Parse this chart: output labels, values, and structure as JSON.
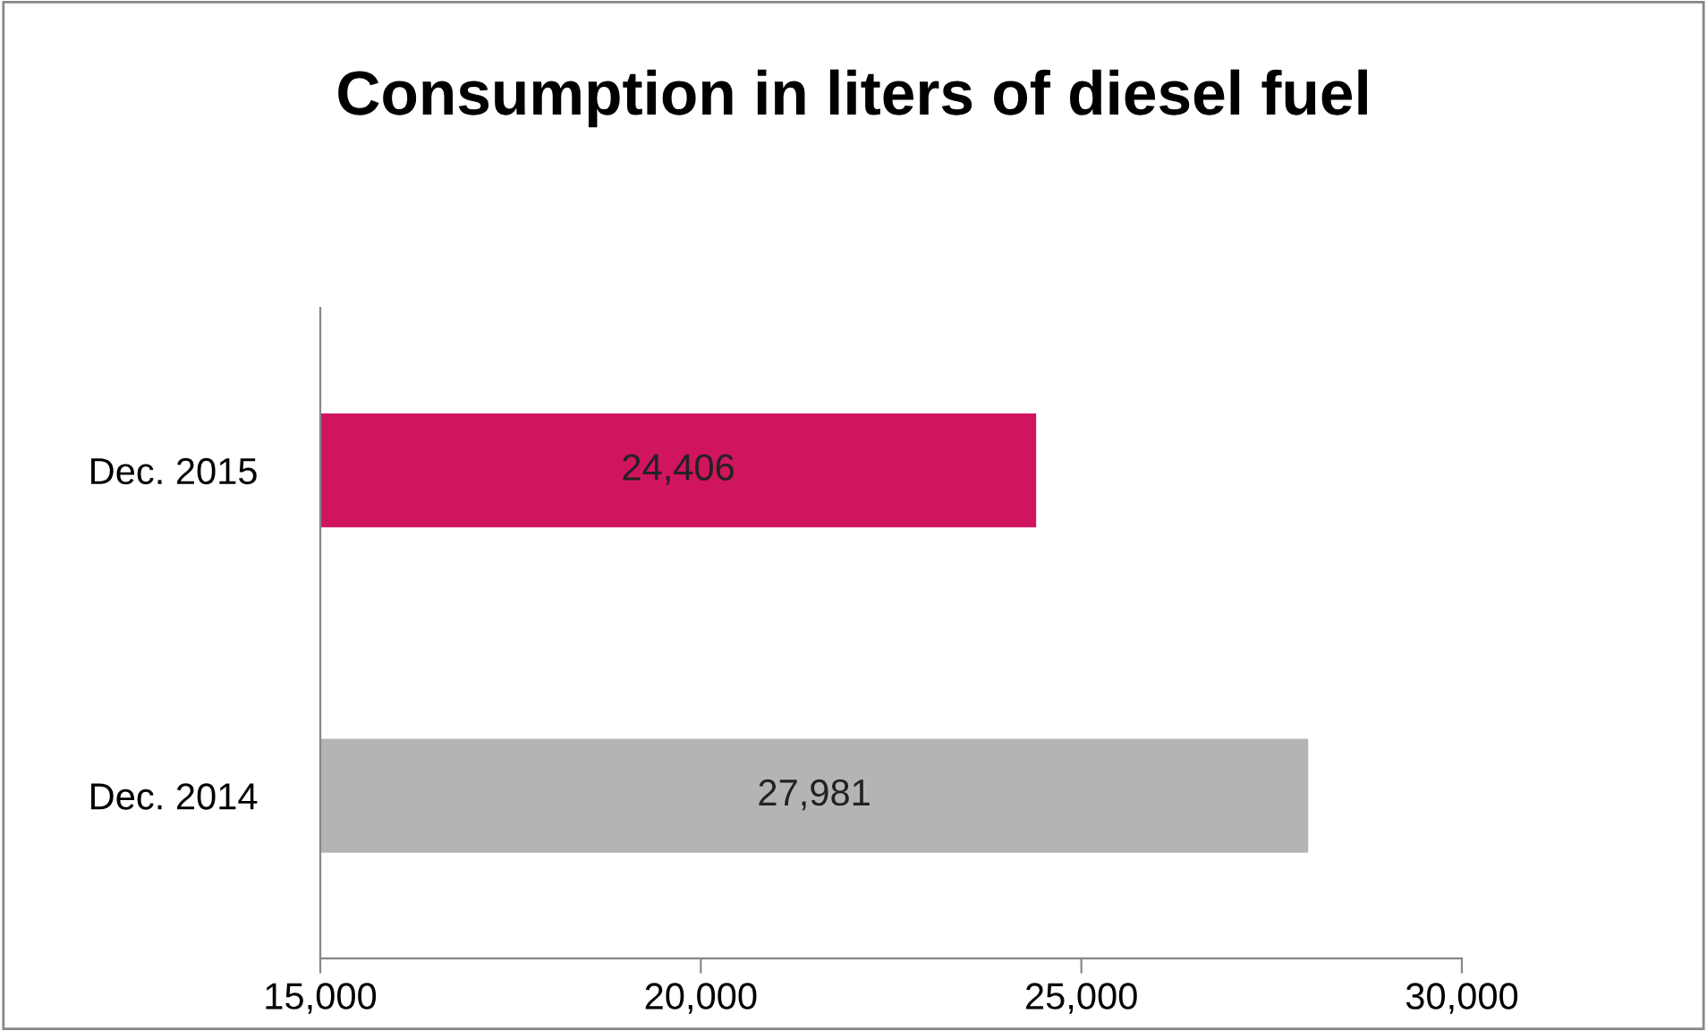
{
  "chart_data": {
    "type": "bar",
    "orientation": "horizontal",
    "title": "Consumption in liters of diesel fuel",
    "categories": [
      "Dec. 2015",
      "Dec. 2014"
    ],
    "values": [
      24406,
      27981
    ],
    "colors": [
      "#d0145e",
      "#b4b4b4"
    ],
    "value_labels": [
      "24,406",
      "27,981"
    ],
    "xlim": [
      15000,
      30000
    ],
    "xticks": [
      {
        "value": 15000,
        "label": "15,000"
      },
      {
        "value": 20000,
        "label": "20,000"
      },
      {
        "value": 25000,
        "label": "25,000"
      },
      {
        "value": 30000,
        "label": "30,000"
      }
    ],
    "grid": false,
    "legend": false
  }
}
